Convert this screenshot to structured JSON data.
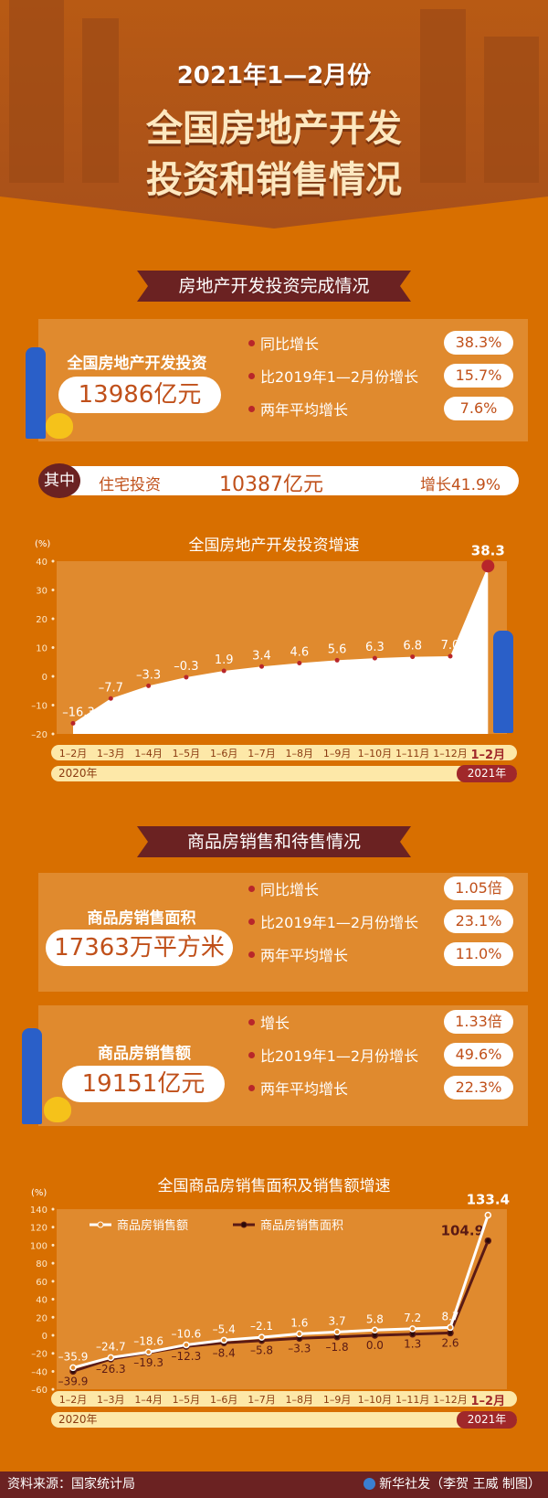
{
  "header": {
    "line0": "2021年1—2月份",
    "line1": "全国房地产开发",
    "line2": "投资和销售情况"
  },
  "section1": {
    "banner": "房地产开发投资完成情况",
    "label": "全国房地产开发投资",
    "value": "13986亿元",
    "stats": [
      {
        "label": "同比增长",
        "value": "38.3%"
      },
      {
        "label": "比2019年1—2月份增长",
        "value": "15.7%"
      },
      {
        "label": "两年平均增长",
        "value": "7.6%"
      }
    ],
    "sub": {
      "tag": "其中",
      "label": "住宅投资",
      "value": "10387亿元",
      "growth": "增长41.9%"
    }
  },
  "section2": {
    "banner": "商品房销售和待售情况",
    "area": {
      "label": "商品房销售面积",
      "value": "17363万平方米",
      "stats": [
        {
          "label": "同比增长",
          "value": "1.05倍"
        },
        {
          "label": "比2019年1—2月份增长",
          "value": "23.1%"
        },
        {
          "label": "两年平均增长",
          "value": "11.0%"
        }
      ]
    },
    "amount": {
      "label": "商品房销售额",
      "value": "19151亿元",
      "stats": [
        {
          "label": "增长",
          "value": "1.33倍"
        },
        {
          "label": "比2019年1—2月份增长",
          "value": "49.6%"
        },
        {
          "label": "两年平均增长",
          "value": "22.3%"
        }
      ]
    }
  },
  "chart_data": [
    {
      "type": "area",
      "title": "全国房地产开发投资增速",
      "ylabel": "(%)",
      "ylim": [
        -20,
        40
      ],
      "yticks": [
        40,
        30,
        20,
        10,
        0,
        -10,
        -20
      ],
      "categories": [
        "1–2月",
        "1–3月",
        "1–4月",
        "1–5月",
        "1–6月",
        "1–7月",
        "1–8月",
        "1–9月",
        "1–10月",
        "1–11月",
        "1–12月",
        "1–2月"
      ],
      "values": [
        -16.3,
        -7.7,
        -3.3,
        -0.3,
        1.9,
        3.4,
        4.6,
        5.6,
        6.3,
        6.8,
        7.0,
        38.3
      ],
      "years": [
        "2020年",
        "2021年"
      ],
      "colors": {
        "fill": "#ffffff",
        "point": "#b8262a"
      }
    },
    {
      "type": "line",
      "title": "全国商品房销售面积及销售额增速",
      "ylabel": "(%)",
      "ylim": [
        -60,
        140
      ],
      "yticks": [
        140,
        120,
        100,
        80,
        60,
        40,
        20,
        0,
        -20,
        -40,
        -60
      ],
      "categories": [
        "1–2月",
        "1–3月",
        "1–4月",
        "1–5月",
        "1–6月",
        "1–7月",
        "1–8月",
        "1–9月",
        "1–10月",
        "1–11月",
        "1–12月",
        "1–2月"
      ],
      "series": [
        {
          "name": "商品房销售额",
          "values": [
            -35.9,
            -24.7,
            -18.6,
            -10.6,
            -5.4,
            -2.1,
            1.6,
            3.7,
            5.8,
            7.2,
            8.7,
            133.4
          ],
          "color": "#ffffff"
        },
        {
          "name": "商品房销售面积",
          "values": [
            -39.9,
            -26.3,
            -19.3,
            -12.3,
            -8.4,
            -5.8,
            -3.3,
            -1.8,
            0.0,
            1.3,
            2.6,
            104.9
          ],
          "color": "#5a1a14"
        }
      ],
      "years": [
        "2020年",
        "2021年"
      ],
      "legend": "top-left"
    }
  ],
  "footer": {
    "source": "资料来源：国家统计局",
    "credit": "新华社发（李贺 王威 制图）"
  }
}
